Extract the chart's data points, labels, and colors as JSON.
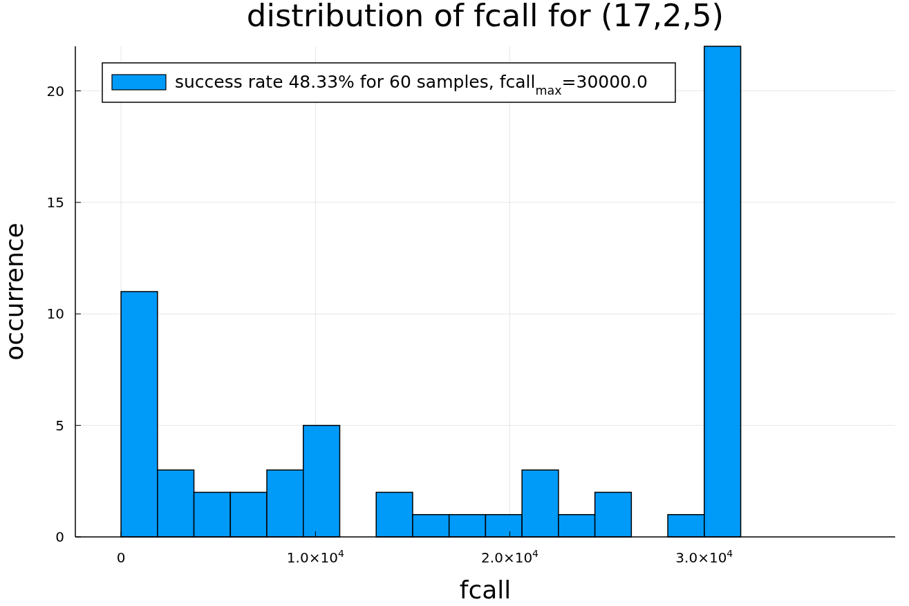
{
  "chart_data": {
    "type": "histogram",
    "title": "distribution of fcall for (17,2,5)",
    "xlabel": "fcall",
    "ylabel": "occurrence",
    "bins": [
      0,
      1875,
      3750,
      5625,
      7500,
      9375,
      11250,
      13125,
      15000,
      16875,
      18750,
      20625,
      22500,
      24375,
      26250,
      28125,
      30000,
      31875
    ],
    "series": [
      {
        "name": "success rate 48.33% for 60 samples, fcall$_{max}$=30000.0",
        "color": "#009af9",
        "values": [
          11,
          3,
          2,
          2,
          3,
          5,
          0,
          2,
          1,
          1,
          1,
          3,
          1,
          2,
          0,
          1,
          22
        ]
      }
    ],
    "xlim": [
      -2350,
      39820
    ],
    "ylim": [
      0,
      22
    ],
    "xticks": [
      {
        "value": 0,
        "label": "0"
      },
      {
        "value": 10000,
        "label": "1.0×10$^{4}$"
      },
      {
        "value": 20000,
        "label": "2.0×10$^{4}$"
      },
      {
        "value": 30000,
        "label": "3.0×10$^{4}$"
      }
    ],
    "yticks": [
      0,
      5,
      10,
      15,
      20
    ],
    "grid": true,
    "legend": "top left"
  }
}
